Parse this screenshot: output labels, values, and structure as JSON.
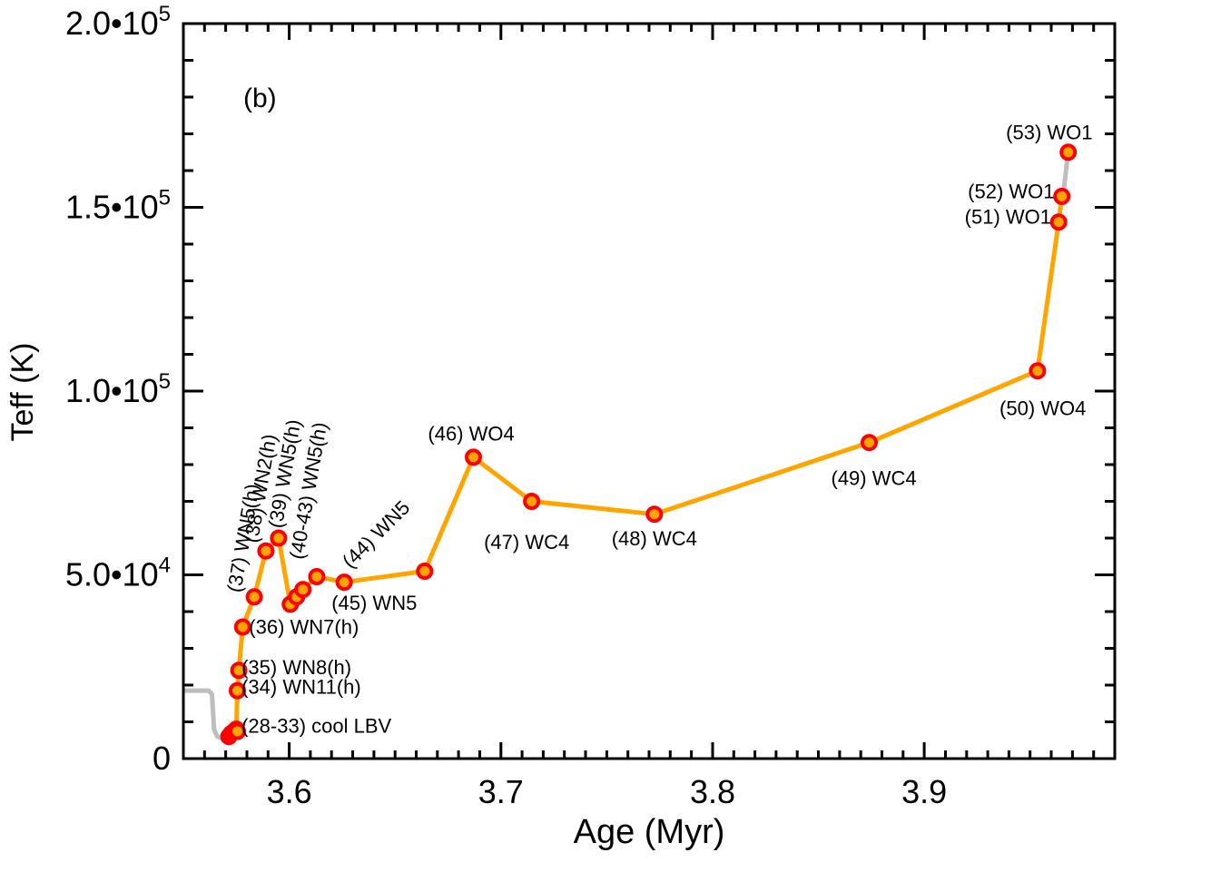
{
  "chart_data": {
    "type": "line",
    "panel_label": "(b)",
    "xlabel": "Age (Myr)",
    "ylabel": "Teff (K)",
    "xlim": [
      3.55,
      3.99
    ],
    "ylim": [
      0,
      200000
    ],
    "x_ticks": [
      {
        "value": 3.6,
        "label": "3.6"
      },
      {
        "value": 3.7,
        "label": "3.7"
      },
      {
        "value": 3.8,
        "label": "3.8"
      },
      {
        "value": 3.9,
        "label": "3.9"
      }
    ],
    "y_ticks": [
      {
        "value": 0,
        "mant": "0",
        "exp": ""
      },
      {
        "value": 50000,
        "mant": "5.0•10",
        "exp": "4"
      },
      {
        "value": 100000,
        "mant": "1.0•10",
        "exp": "5"
      },
      {
        "value": 150000,
        "mant": "1.5•10",
        "exp": "5"
      },
      {
        "value": 200000,
        "mant": "2.0•10",
        "exp": "5"
      }
    ],
    "colors": {
      "track": "#FFA500",
      "pre_track": "#BEBEBE",
      "marker": "#FF0000",
      "marker_center": "#FFA500"
    },
    "grey_track_start": {
      "x": [
        3.551,
        3.562,
        3.5635,
        3.5645,
        3.566,
        3.5685,
        3.571
      ],
      "y": [
        18500,
        18500,
        17500,
        8000,
        6000,
        5500,
        6500
      ]
    },
    "grey_track_end": {
      "x": [
        3.9655,
        3.968
      ],
      "y": [
        153000,
        165000
      ]
    },
    "track": {
      "x": [
        3.571,
        3.5725,
        3.5735,
        3.575,
        3.5755,
        3.5762,
        3.578,
        3.5835,
        3.589,
        3.595,
        3.6005,
        3.6035,
        3.6065,
        3.613,
        3.626,
        3.664,
        3.687,
        3.7145,
        3.7725,
        3.874,
        3.9535,
        3.9635,
        3.965
      ],
      "y": [
        6500,
        7200,
        7600,
        7900,
        18500,
        24000,
        35800,
        44000,
        56500,
        60000,
        42000,
        44000,
        46000,
        49500,
        48000,
        51000,
        82000,
        70000,
        66500,
        86000,
        105500,
        146000,
        153000
      ]
    },
    "markers": [
      {
        "x": 3.5715,
        "y": 6000
      },
      {
        "x": 3.5725,
        "y": 6800
      },
      {
        "x": 3.5735,
        "y": 7200
      },
      {
        "x": 3.5745,
        "y": 7600
      },
      {
        "x": 3.575,
        "y": 8000
      },
      {
        "x": 3.5755,
        "y": 7400
      },
      {
        "x": 3.5755,
        "y": 18500
      },
      {
        "x": 3.5762,
        "y": 24000
      },
      {
        "x": 3.578,
        "y": 35800
      },
      {
        "x": 3.5835,
        "y": 44000
      },
      {
        "x": 3.589,
        "y": 56500
      },
      {
        "x": 3.595,
        "y": 60000
      },
      {
        "x": 3.6005,
        "y": 42000
      },
      {
        "x": 3.6035,
        "y": 44000
      },
      {
        "x": 3.6065,
        "y": 46000
      },
      {
        "x": 3.613,
        "y": 49500
      },
      {
        "x": 3.626,
        "y": 48000
      },
      {
        "x": 3.664,
        "y": 51000
      },
      {
        "x": 3.687,
        "y": 82000
      },
      {
        "x": 3.7145,
        "y": 70000
      },
      {
        "x": 3.7725,
        "y": 66500
      },
      {
        "x": 3.874,
        "y": 86000
      },
      {
        "x": 3.9535,
        "y": 105500
      },
      {
        "x": 3.9635,
        "y": 146000
      },
      {
        "x": 3.965,
        "y": 153000
      },
      {
        "x": 3.968,
        "y": 165000
      }
    ],
    "annotations": [
      {
        "text": "(28-33) cool LBV",
        "x": 3.5775,
        "y": 7000,
        "anchor": "start",
        "rotate": 0
      },
      {
        "text": "(34) WN11(h)",
        "x": 3.5775,
        "y": 17600,
        "anchor": "start",
        "rotate": 0
      },
      {
        "text": "(35) WN8(h)",
        "x": 3.5775,
        "y": 23000,
        "anchor": "start",
        "rotate": 0
      },
      {
        "text": "(36) WN7(h)",
        "x": 3.581,
        "y": 34000,
        "anchor": "start",
        "rotate": 0
      },
      {
        "text": "(37) WN5(h)",
        "x": 3.577,
        "y": 45000,
        "anchor": "start",
        "rotate": -80
      },
      {
        "text": "(38) WN2(h)",
        "x": 3.585,
        "y": 58500,
        "anchor": "start",
        "rotate": -80
      },
      {
        "text": "(39) WN5(h)",
        "x": 3.5965,
        "y": 62500,
        "anchor": "start",
        "rotate": -80
      },
      {
        "text": "(40-43) WN5(h)",
        "x": 3.6065,
        "y": 54000,
        "anchor": "start",
        "rotate": -80
      },
      {
        "text": "(44) WN5",
        "x": 3.629,
        "y": 51500,
        "anchor": "start",
        "rotate": -45
      },
      {
        "text": "(45) WN5",
        "x": 3.62,
        "y": 40500,
        "anchor": "start",
        "rotate": 0
      },
      {
        "text": "(46) WO4",
        "x": 3.686,
        "y": 86500,
        "anchor": "middle",
        "rotate": 0
      },
      {
        "text": "(47) WC4",
        "x": 3.692,
        "y": 57000,
        "anchor": "start",
        "rotate": 0
      },
      {
        "text": "(48) WC4",
        "x": 3.7725,
        "y": 58000,
        "anchor": "middle",
        "rotate": 0
      },
      {
        "text": "(49) WC4",
        "x": 3.856,
        "y": 74500,
        "anchor": "start",
        "rotate": 0
      },
      {
        "text": "(50) WO4",
        "x": 3.956,
        "y": 93500,
        "anchor": "middle",
        "rotate": 0
      },
      {
        "text": "(51) WO1",
        "x": 3.96,
        "y": 145500,
        "anchor": "end",
        "rotate": 0
      },
      {
        "text": "(52) WO1",
        "x": 3.9615,
        "y": 152500,
        "anchor": "end",
        "rotate": 0
      },
      {
        "text": "(53) WO1",
        "x": 3.9795,
        "y": 168500,
        "anchor": "end",
        "rotate": 0
      }
    ]
  }
}
